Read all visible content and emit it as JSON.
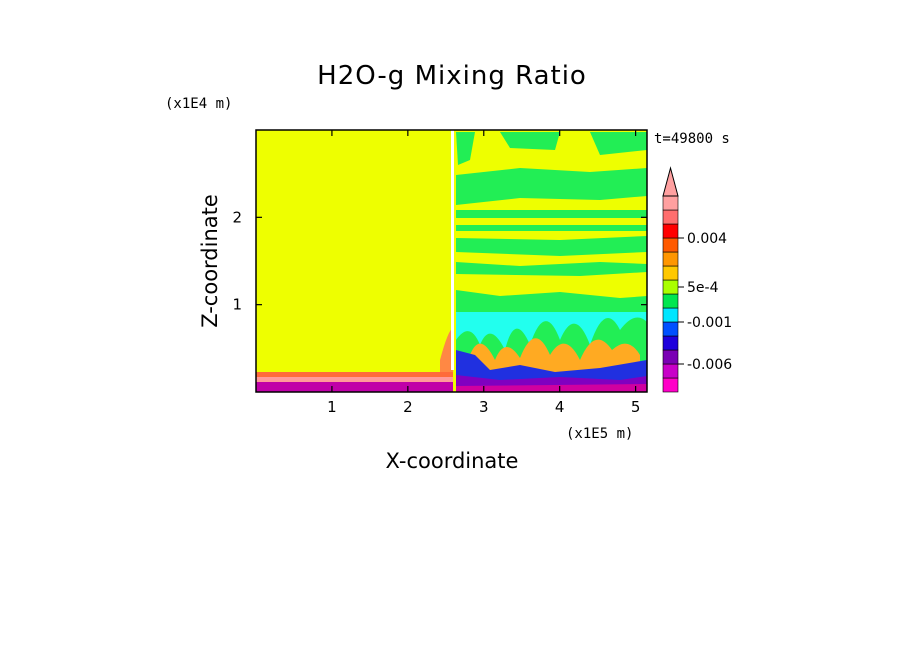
{
  "chart_data": {
    "type": "heatmap",
    "title": "H2O-g Mixing Ratio",
    "xlabel": "X-coordinate",
    "ylabel": "Z-coordinate",
    "x_scale_label": "(x1E5 m)",
    "y_scale_label": "(x1E4 m)",
    "time_label": "t=49800 s",
    "xlim": [
      0,
      5.15
    ],
    "ylim": [
      0,
      3.0
    ],
    "x_ticks": [
      1,
      2,
      3,
      4,
      5
    ],
    "x_tick_labels": [
      "1",
      "2",
      "3",
      "4",
      "5"
    ],
    "y_ticks": [
      1,
      2
    ],
    "y_tick_labels": [
      "1",
      "2"
    ],
    "colorbar": {
      "colors": [
        "#ff00c8",
        "#c800c8",
        "#7a00b4",
        "#1e00dc",
        "#0050ff",
        "#00e6ff",
        "#00e650",
        "#aaff00",
        "#ffc800",
        "#ff9600",
        "#ff5a00",
        "#ff0000",
        "#ff6e6e",
        "#ffa0a0"
      ],
      "labels": [
        {
          "text": "-0.006",
          "at_bin": 2.0
        },
        {
          "text": "-0.001",
          "at_bin": 5.0
        },
        {
          "text": "5e-4",
          "at_bin": 7.5
        },
        {
          "text": "0.004",
          "at_bin": 11.0
        }
      ]
    },
    "field_colors": {
      "left_region": "#eeff00",
      "right_background": "#eeff00",
      "moist_band": "#22ee55",
      "cyan": "#22ffee",
      "orange": "#ffaa22",
      "blue": "#2030e0",
      "purple": "#8000c0",
      "magenta": "#d000a0",
      "surface_red": "#ff5030"
    }
  }
}
